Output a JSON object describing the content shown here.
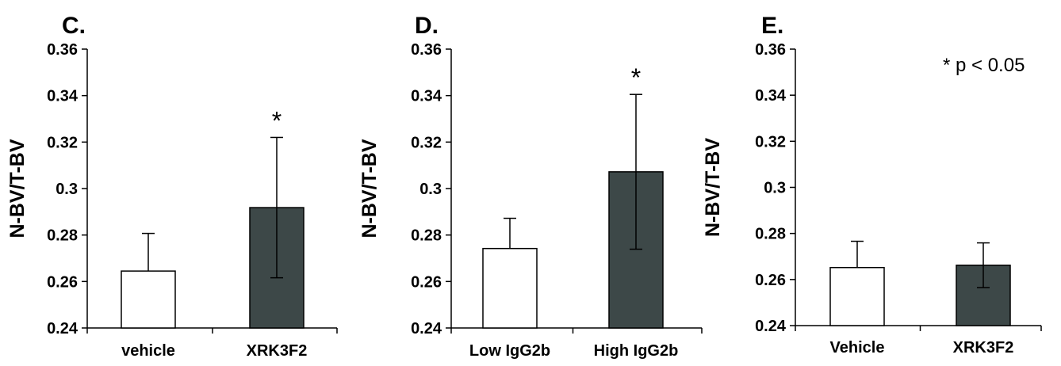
{
  "chart_data": [
    {
      "type": "bar",
      "panel": "C.",
      "categories": [
        "vehicle",
        "XRK3F2"
      ],
      "values": [
        0.2645,
        0.2918
      ],
      "errors": [
        0.0162,
        0.0302
      ],
      "significance": [
        "",
        "*"
      ],
      "bar_colors": [
        "#ffffff",
        "#3d4848"
      ],
      "ylabel": "N-BV/T-BV",
      "ylim": [
        0.24,
        0.36
      ],
      "yticks": [
        "0.24",
        "0.26",
        "0.28",
        "0.3",
        "0.32",
        "0.34",
        "0.36"
      ],
      "grid": false
    },
    {
      "type": "bar",
      "panel": "D.",
      "categories": [
        "Low IgG2b",
        "High IgG2b"
      ],
      "values": [
        0.2742,
        0.3072
      ],
      "errors": [
        0.013,
        0.0333
      ],
      "significance": [
        "",
        "*"
      ],
      "bar_colors": [
        "#ffffff",
        "#3d4848"
      ],
      "ylabel": "N-BV/T-BV",
      "ylim": [
        0.24,
        0.36
      ],
      "yticks": [
        "0.24",
        "0.26",
        "0.28",
        "0.3",
        "0.32",
        "0.34",
        "0.36"
      ],
      "grid": false
    },
    {
      "type": "bar",
      "panel": "E.",
      "categories": [
        "Vehicle",
        "XRK3F2"
      ],
      "values": [
        0.2652,
        0.2662
      ],
      "errors": [
        0.0114,
        0.0097
      ],
      "significance": [
        "",
        ""
      ],
      "bar_colors": [
        "#ffffff",
        "#3d4848"
      ],
      "ylabel": "N-BV/T-BV",
      "ylim": [
        0.24,
        0.36
      ],
      "yticks": [
        "0.24",
        "0.26",
        "0.28",
        "0.3",
        "0.32",
        "0.34",
        "0.36"
      ],
      "grid": false,
      "annotation": "* p < 0.05"
    }
  ]
}
